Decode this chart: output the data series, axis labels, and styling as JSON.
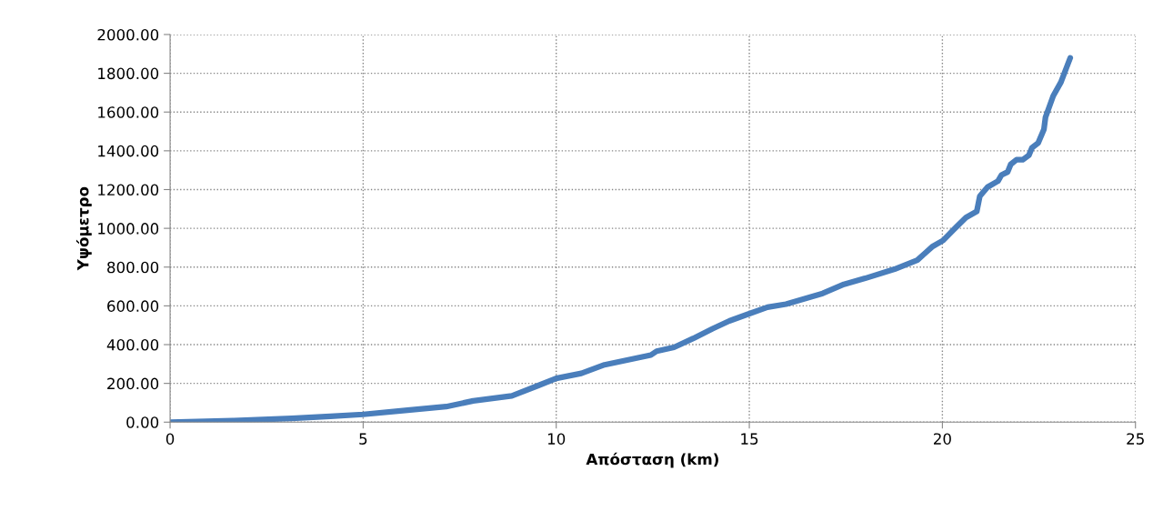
{
  "chart_data": {
    "type": "line",
    "xlabel": "Απόσταση (km)",
    "ylabel": "Υψόμετρο",
    "xlim": [
      0,
      25
    ],
    "xticks": [
      0,
      5,
      10,
      15,
      20,
      25
    ],
    "ylim": [
      0,
      2000
    ],
    "yticks": [
      {
        "value": 0,
        "label": "0.00"
      },
      {
        "value": 200,
        "label": "200.00"
      },
      {
        "value": 400,
        "label": "400.00"
      },
      {
        "value": 600,
        "label": "600.00"
      },
      {
        "value": 800,
        "label": "800.00"
      },
      {
        "value": 1000,
        "label": "1000.00"
      },
      {
        "value": 1200,
        "label": "1200.00"
      },
      {
        "value": 1400,
        "label": "1400.00"
      },
      {
        "value": 1600,
        "label": "1600.00"
      },
      {
        "value": 1800,
        "label": "1800.00"
      },
      {
        "value": 2000,
        "label": "2000.00"
      }
    ],
    "grid": true,
    "legend": false,
    "marker": "none",
    "line_style": "solid",
    "series": [
      {
        "color": "#4a7ebb",
        "x": [
          0,
          1.65,
          3.15,
          4.15,
          5,
          6.15,
          7.15,
          7.85,
          8.85,
          9.55,
          10,
          10.65,
          11.25,
          12.45,
          12.6,
          13.05,
          13.55,
          14.05,
          14.48,
          14.95,
          15.47,
          15.95,
          16.9,
          17.45,
          18.0,
          18.76,
          19.35,
          19.75,
          20.02,
          20.37,
          20.61,
          20.89,
          20.97,
          21.17,
          21.44,
          21.53,
          21.69,
          21.77,
          21.92,
          22.08,
          22.24,
          22.32,
          22.48,
          22.63,
          22.67,
          22.87,
          23.07,
          23.31
        ],
        "values": [
          0,
          8,
          20,
          30,
          40,
          62,
          80,
          110,
          136,
          190,
          226,
          252,
          296,
          346,
          366,
          386,
          432,
          482,
          522,
          556,
          593,
          609,
          664,
          711,
          742,
          789,
          836,
          907,
          938,
          1009,
          1056,
          1087,
          1166,
          1213,
          1244,
          1275,
          1291,
          1330,
          1354,
          1354,
          1377,
          1416,
          1440,
          1511,
          1573,
          1683,
          1754,
          1879
        ]
      }
    ]
  }
}
